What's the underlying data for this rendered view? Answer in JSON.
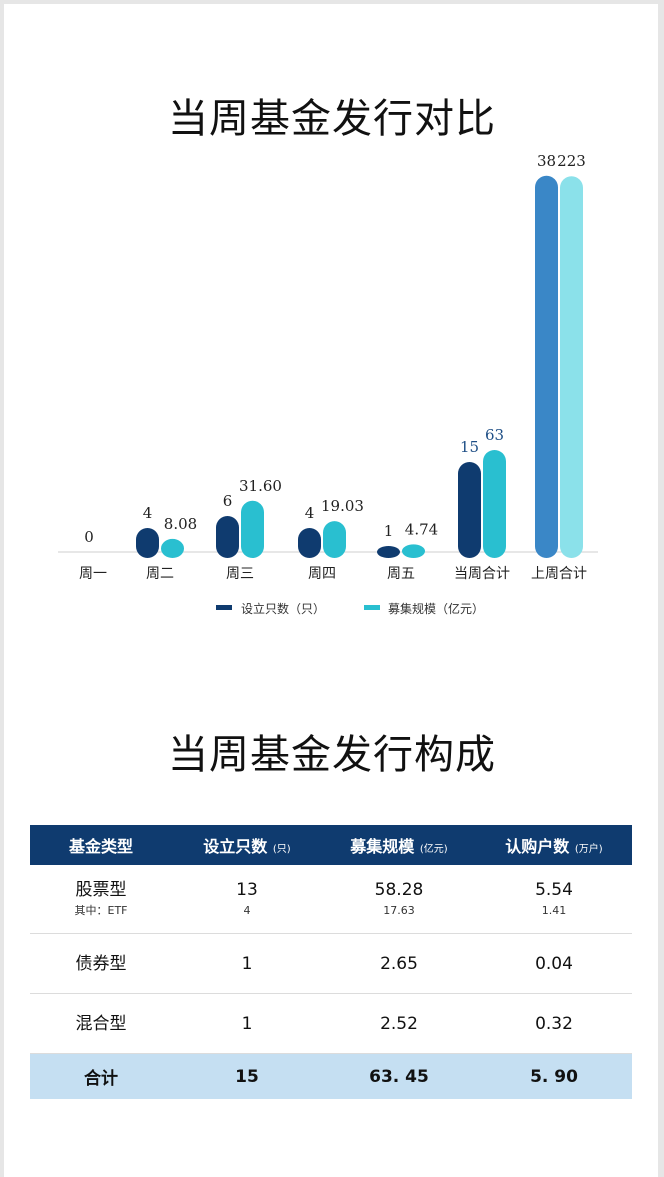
{
  "chart_title": "当周基金发行对比",
  "table_title": "当周基金发行构成",
  "chart_data": {
    "type": "bar",
    "categories": [
      "周一",
      "周二",
      "周三",
      "周四",
      "周五",
      "当周合计",
      "上周合计"
    ],
    "series": [
      {
        "name": "设立只数（只）",
        "values": [
          0,
          4,
          6,
          4,
          1,
          15,
          38
        ],
        "labels": [
          "0",
          "4",
          "6",
          "4",
          "1",
          "15",
          "38"
        ]
      },
      {
        "name": "募集规模（亿元）",
        "values": [
          null,
          8.08,
          31.6,
          19.03,
          4.74,
          63,
          223
        ],
        "labels": [
          "",
          "8.08",
          "31.60",
          "19.03",
          "4.74",
          "63",
          "223"
        ]
      }
    ],
    "colors": {
      "count": "#0f3b6f",
      "scale": "#29bfd0",
      "count_this_week": "#0f3b6f",
      "scale_this_week": "#29bfd0",
      "count_last_week": "#3a87c7",
      "scale_last_week": "#8be1ea",
      "label_this_week": "#1f4f86"
    },
    "legend": [
      "设立只数（只）",
      "募集规模（亿元）"
    ],
    "legend_position": "bottom",
    "grid": false
  },
  "table": {
    "headers": [
      {
        "label": "基金类型",
        "unit": ""
      },
      {
        "label": "设立只数",
        "unit": "(只)"
      },
      {
        "label": "募集规模",
        "unit": "(亿元)"
      },
      {
        "label": "认购户数",
        "unit": "(万户)"
      }
    ],
    "rows": [
      {
        "type": "股票型",
        "count": "13",
        "scale": "58.28",
        "households": "5.54",
        "sub": {
          "type": "其中：ETF",
          "count": "4",
          "scale": "17.63",
          "households": "1.41"
        }
      },
      {
        "type": "债券型",
        "count": "1",
        "scale": "2.65",
        "households": "0.04"
      },
      {
        "type": "混合型",
        "count": "1",
        "scale": "2.52",
        "households": "0.32"
      }
    ],
    "total": {
      "type": "合计",
      "count": "15",
      "scale": "63. 45",
      "households": "5. 90"
    }
  }
}
